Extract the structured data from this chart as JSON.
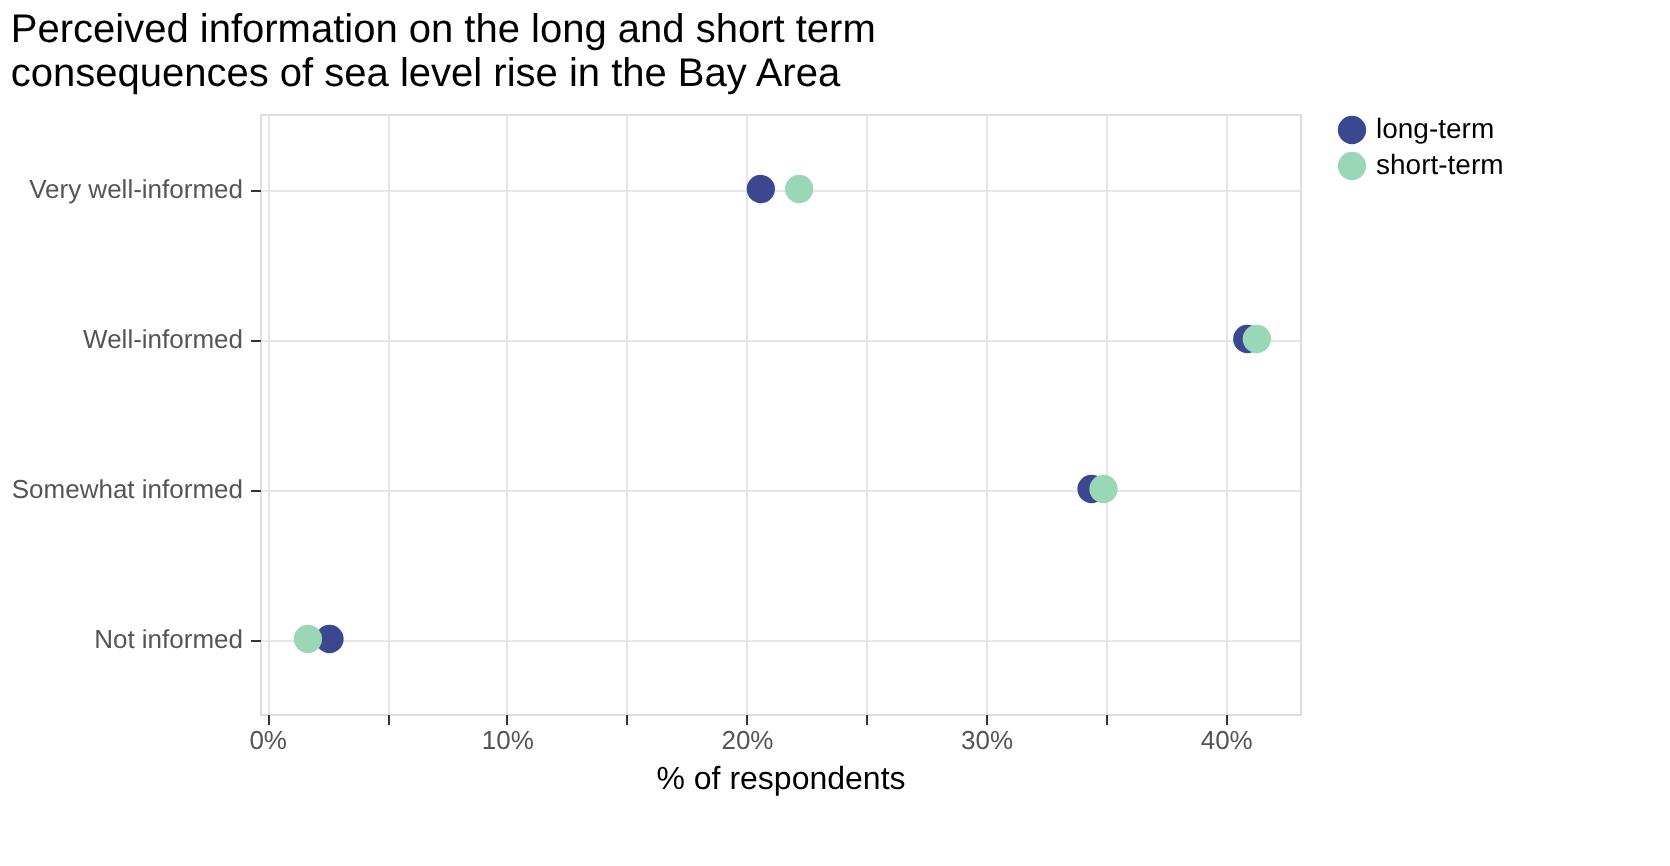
{
  "chart_data": {
    "type": "scatter",
    "title": "Perceived information on the long and short term\nconsequences of sea level rise in the Bay Area",
    "xlabel": "% of respondents",
    "categories": [
      "Very well-informed",
      "Well-informed",
      "Somewhat informed",
      "Not informed"
    ],
    "orientation": "horizontal",
    "series": [
      {
        "name": "long-term",
        "color": "#3b4890",
        "values": [
          20.6,
          40.9,
          34.4,
          2.6
        ]
      },
      {
        "name": "short-term",
        "color": "#9ad7b6",
        "values": [
          22.2,
          41.3,
          34.9,
          1.7
        ]
      }
    ],
    "xlim": [
      -0.3,
      43.1
    ],
    "xticks": [
      {
        "value": 0,
        "label": "0%"
      },
      {
        "value": 5,
        "label": null
      },
      {
        "value": 10,
        "label": "10%"
      },
      {
        "value": 15,
        "label": null
      },
      {
        "value": 20,
        "label": "20%"
      },
      {
        "value": 25,
        "label": null
      },
      {
        "value": 30,
        "label": "30%"
      },
      {
        "value": 35,
        "label": null
      },
      {
        "value": 40,
        "label": "40%"
      }
    ],
    "grid": true,
    "legend": "right",
    "marker": "circle"
  }
}
